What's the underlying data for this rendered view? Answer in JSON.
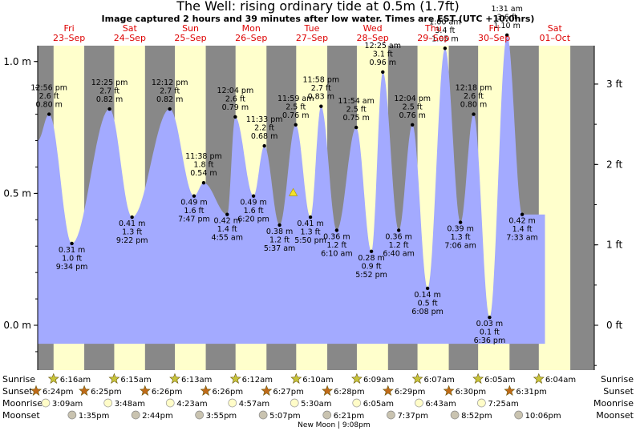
{
  "title": "The Well: rising  ordinary tide at 0.5m (1.7ft)",
  "subtitle": "Image captured 2 hours and 39 minutes after low water. Times are EST (UTC +10.0hrs)",
  "chart_data": {
    "type": "area",
    "ylabel_left": "m",
    "ylabel_right": "ft",
    "y_range_m": [
      -0.17,
      1.06
    ],
    "x_range_hours": [
      0,
      220
    ],
    "left_ticks": [
      {
        "v": 0.0,
        "label": "0.0 m"
      },
      {
        "v": 0.5,
        "label": "0.5 m"
      },
      {
        "v": 1.0,
        "label": "1.0 m"
      }
    ],
    "right_ticks": [
      {
        "ft": 0,
        "label": "0 ft"
      },
      {
        "ft": 1,
        "label": "1 ft"
      },
      {
        "ft": 2,
        "label": "2 ft"
      },
      {
        "ft": 3,
        "label": "3 ft"
      }
    ],
    "days": [
      {
        "day": "Fri",
        "date": "23–Sep",
        "start": 0,
        "sunrise_h": 6.27,
        "sunset_h": 18.4
      },
      {
        "day": "Sat",
        "date": "24–Sep",
        "start": 24,
        "sunrise_h": 6.25,
        "sunset_h": 18.42
      },
      {
        "day": "Sun",
        "date": "25–Sep",
        "start": 48,
        "sunrise_h": 6.22,
        "sunset_h": 18.43
      },
      {
        "day": "Mon",
        "date": "26–Sep",
        "start": 72,
        "sunrise_h": 6.2,
        "sunset_h": 18.43
      },
      {
        "day": "Tue",
        "date": "27–Sep",
        "start": 96,
        "sunrise_h": 6.17,
        "sunset_h": 18.45
      },
      {
        "day": "Wed",
        "date": "28–Sep",
        "start": 120,
        "sunrise_h": 6.15,
        "sunset_h": 18.47
      },
      {
        "day": "Thu",
        "date": "29–Sep",
        "start": 144,
        "sunrise_h": 6.12,
        "sunset_h": 18.48
      },
      {
        "day": "Fri",
        "date": "30–Sep",
        "start": 168,
        "sunrise_h": 6.08,
        "sunset_h": 18.5
      },
      {
        "day": "Sat",
        "date": "01–Oct",
        "start": 192,
        "sunrise_h": 6.07,
        "sunset_h": 18.52
      }
    ],
    "curve_start": {
      "t": 0.0,
      "v": 0.7
    },
    "curve_end": {
      "t": 200.5,
      "v": 0.42
    },
    "extremes": [
      {
        "t": 4.5,
        "v": 0.8,
        "type": "high",
        "time": "12:56 pm",
        "m": "0.80 m",
        "ft": "2.6 ft"
      },
      {
        "t": 13.5,
        "v": 0.31,
        "type": "low",
        "time": "9:34 pm",
        "m": "0.31 m",
        "ft": "1.0 ft"
      },
      {
        "t": 28.4,
        "v": 0.82,
        "type": "high",
        "time": "12:25 pm",
        "m": "0.82 m",
        "ft": "2.7 ft"
      },
      {
        "t": 37.3,
        "v": 0.41,
        "type": "low",
        "time": "9:22 pm",
        "m": "0.41 m",
        "ft": "1.3 ft"
      },
      {
        "t": 52.2,
        "v": 0.82,
        "type": "high",
        "time": "12:12 pm",
        "m": "0.82 m",
        "ft": "2.7 ft"
      },
      {
        "t": 61.8,
        "v": 0.49,
        "type": "low",
        "time": "7:47 pm",
        "m": "0.49 m",
        "ft": "1.6 ft"
      },
      {
        "t": 65.6,
        "v": 0.54,
        "type": "high",
        "time": "11:38 pm",
        "m": "0.54 m",
        "ft": "1.8 ft"
      },
      {
        "t": 74.9,
        "v": 0.42,
        "type": "low",
        "time": "4:55 am",
        "m": "0.42 m",
        "ft": "1.4 ft"
      },
      {
        "t": 78.1,
        "v": 0.79,
        "type": "high",
        "time": "12:04 pm",
        "m": "0.79 m",
        "ft": "2.6 ft"
      },
      {
        "t": 85.3,
        "v": 0.49,
        "type": "low",
        "time": "6:20 pm",
        "m": "0.49 m",
        "ft": "1.6 ft"
      },
      {
        "t": 89.6,
        "v": 0.68,
        "type": "high",
        "time": "11:33 pm",
        "m": "0.68 m",
        "ft": "2.2 ft"
      },
      {
        "t": 95.6,
        "v": 0.38,
        "type": "low",
        "time": "5:37 am",
        "m": "0.38 m",
        "ft": "1.2 ft"
      },
      {
        "t": 102.0,
        "v": 0.76,
        "type": "high",
        "time": "11:59 am",
        "m": "0.76 m",
        "ft": "2.5 ft"
      },
      {
        "t": 107.8,
        "v": 0.41,
        "type": "low",
        "time": "5:50 pm",
        "m": "0.41 m",
        "ft": "1.3 ft"
      },
      {
        "t": 112.0,
        "v": 0.83,
        "type": "high",
        "time": "11:58 pm",
        "m": "0.83 m",
        "ft": "2.7 ft"
      },
      {
        "t": 118.2,
        "v": 0.36,
        "type": "low",
        "time": "6:10 am",
        "m": "0.36 m",
        "ft": "1.2 ft"
      },
      {
        "t": 125.9,
        "v": 0.75,
        "type": "high",
        "time": "11:54 am",
        "m": "0.75 m",
        "ft": "2.5 ft"
      },
      {
        "t": 131.9,
        "v": 0.28,
        "type": "low",
        "time": "5:52 pm",
        "m": "0.28 m",
        "ft": "0.9 ft"
      },
      {
        "t": 136.4,
        "v": 0.96,
        "type": "high",
        "time": "12:25 am",
        "m": "0.96 m",
        "ft": "3.1 ft"
      },
      {
        "t": 142.7,
        "v": 0.36,
        "type": "low",
        "time": "6:40 am",
        "m": "0.36 m",
        "ft": "1.2 ft"
      },
      {
        "t": 148.1,
        "v": 0.76,
        "type": "high",
        "time": "12:04 pm",
        "m": "0.76 m",
        "ft": "2.5 ft"
      },
      {
        "t": 154.1,
        "v": 0.14,
        "type": "low",
        "time": "6:08 pm",
        "m": "0.14 m",
        "ft": "0.5 ft"
      },
      {
        "t": 161.0,
        "v": 1.05,
        "type": "high",
        "time": "1:00 am",
        "m": "1.05 m",
        "ft": "3.4 ft"
      },
      {
        "t": 167.1,
        "v": 0.39,
        "type": "low",
        "time": "7:06 am",
        "m": "0.39 m",
        "ft": "1.3 ft"
      },
      {
        "t": 172.3,
        "v": 0.8,
        "type": "high",
        "time": "12:18 pm",
        "m": "0.80 m",
        "ft": "2.6 ft"
      },
      {
        "t": 178.6,
        "v": 0.03,
        "type": "low",
        "time": "6:36 pm",
        "m": "0.03 m",
        "ft": "0.1 ft"
      },
      {
        "t": 185.5,
        "v": 1.1,
        "type": "high",
        "time": "1:31 am",
        "m": "1.10 m",
        "ft": "3.6 ft"
      },
      {
        "t": 191.5,
        "v": 0.42,
        "type": "low",
        "time": "7:33 am",
        "m": "0.42 m",
        "ft": "1.4 ft"
      }
    ],
    "current_marker": {
      "t": 101.0,
      "v": 0.5
    },
    "rows": {
      "Sunrise": [
        {
          "t": 6.27,
          "label": "6:16am"
        },
        {
          "t": 30.25,
          "label": "6:15am"
        },
        {
          "t": 54.22,
          "label": "6:13am"
        },
        {
          "t": 78.2,
          "label": "6:12am"
        },
        {
          "t": 102.17,
          "label": "6:10am"
        },
        {
          "t": 126.15,
          "label": "6:09am"
        },
        {
          "t": 150.12,
          "label": "6:07am"
        },
        {
          "t": 174.08,
          "label": "6:05am"
        },
        {
          "t": 198.07,
          "label": "6:04am"
        }
      ],
      "Sunset": [
        {
          "t": -5.6,
          "label": "6:24pm"
        },
        {
          "t": 18.42,
          "label": "6:25pm"
        },
        {
          "t": 42.43,
          "label": "6:26pm"
        },
        {
          "t": 66.43,
          "label": "6:26pm"
        },
        {
          "t": 90.45,
          "label": "6:27pm"
        },
        {
          "t": 114.47,
          "label": "6:28pm"
        },
        {
          "t": 138.48,
          "label": "6:29pm"
        },
        {
          "t": 162.5,
          "label": "6:30pm"
        },
        {
          "t": 186.52,
          "label": "6:31pm"
        }
      ],
      "Moonrise": [
        {
          "t": 3.15,
          "label": "3:09am"
        },
        {
          "t": 27.8,
          "label": "3:48am"
        },
        {
          "t": 52.38,
          "label": "4:23am"
        },
        {
          "t": 76.95,
          "label": "4:57am"
        },
        {
          "t": 101.5,
          "label": "5:30am"
        },
        {
          "t": 126.08,
          "label": "6:05am"
        },
        {
          "t": 150.72,
          "label": "6:43am"
        },
        {
          "t": 175.42,
          "label": "7:25am"
        }
      ],
      "Moonset": [
        {
          "t": 13.58,
          "label": "1:35pm"
        },
        {
          "t": 38.73,
          "label": "2:44pm"
        },
        {
          "t": 63.92,
          "label": "3:55pm"
        },
        {
          "t": 89.12,
          "label": "5:07pm"
        },
        {
          "t": 114.35,
          "label": "6:21pm"
        },
        {
          "t": 139.62,
          "label": "7:37pm"
        },
        {
          "t": 164.87,
          "label": "8:52pm"
        },
        {
          "t": 190.1,
          "label": "10:06pm"
        }
      ]
    },
    "row_labels": [
      "Sunrise",
      "Sunset",
      "Moonrise",
      "Moonset"
    ],
    "moon_phase": {
      "t": 117.1,
      "label": "New Moon | 9:08pm"
    }
  },
  "colors": {
    "night": "#888888",
    "day": "#ffffcc",
    "water": "#a3aaff",
    "day_label": "#dd0000",
    "text": "#000000",
    "sunrise_star": "#c8c43a",
    "sunset_star": "#c06a18",
    "moonrise": "#fffcc8",
    "moonset": "#c9c3b0"
  }
}
